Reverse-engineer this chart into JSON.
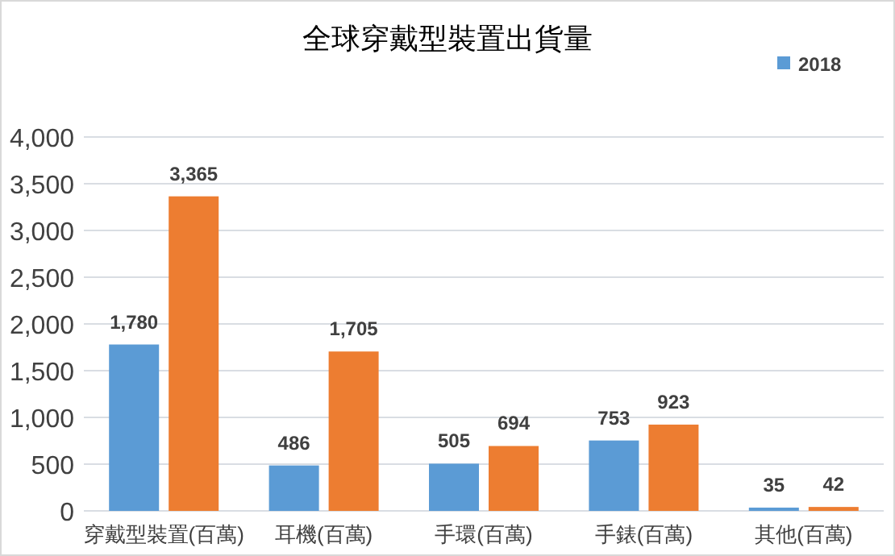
{
  "chart_data": {
    "type": "bar",
    "title": "全球穿戴型裝置出貨量",
    "categories": [
      "穿戴型裝置(百萬)",
      "耳機(百萬)",
      "手環(百萬)",
      "手錶(百萬)",
      "其他(百萬)"
    ],
    "series": [
      {
        "name": "2018",
        "color": "#5b9bd5",
        "values": [
          1780,
          486,
          505,
          753,
          35
        ],
        "value_labels": [
          "1,780",
          "486",
          "505",
          "753",
          "35"
        ]
      },
      {
        "color": "#ed7d31",
        "values": [
          3365,
          1705,
          694,
          923,
          42
        ],
        "value_labels": [
          "3,365",
          "1,705",
          "694",
          "923",
          "42"
        ]
      }
    ],
    "ylim": [
      0,
      4000
    ],
    "yticks": [
      {
        "value": 0,
        "label": "0"
      },
      {
        "value": 500,
        "label": "500"
      },
      {
        "value": 1000,
        "label": "1,000"
      },
      {
        "value": 1500,
        "label": "1,500"
      },
      {
        "value": 2000,
        "label": "2,000"
      },
      {
        "value": 2500,
        "label": "2,500"
      },
      {
        "value": 3000,
        "label": "3,000"
      },
      {
        "value": 3500,
        "label": "3,500"
      },
      {
        "value": 4000,
        "label": "4,000"
      }
    ],
    "grid": "y",
    "legend": "top right"
  }
}
